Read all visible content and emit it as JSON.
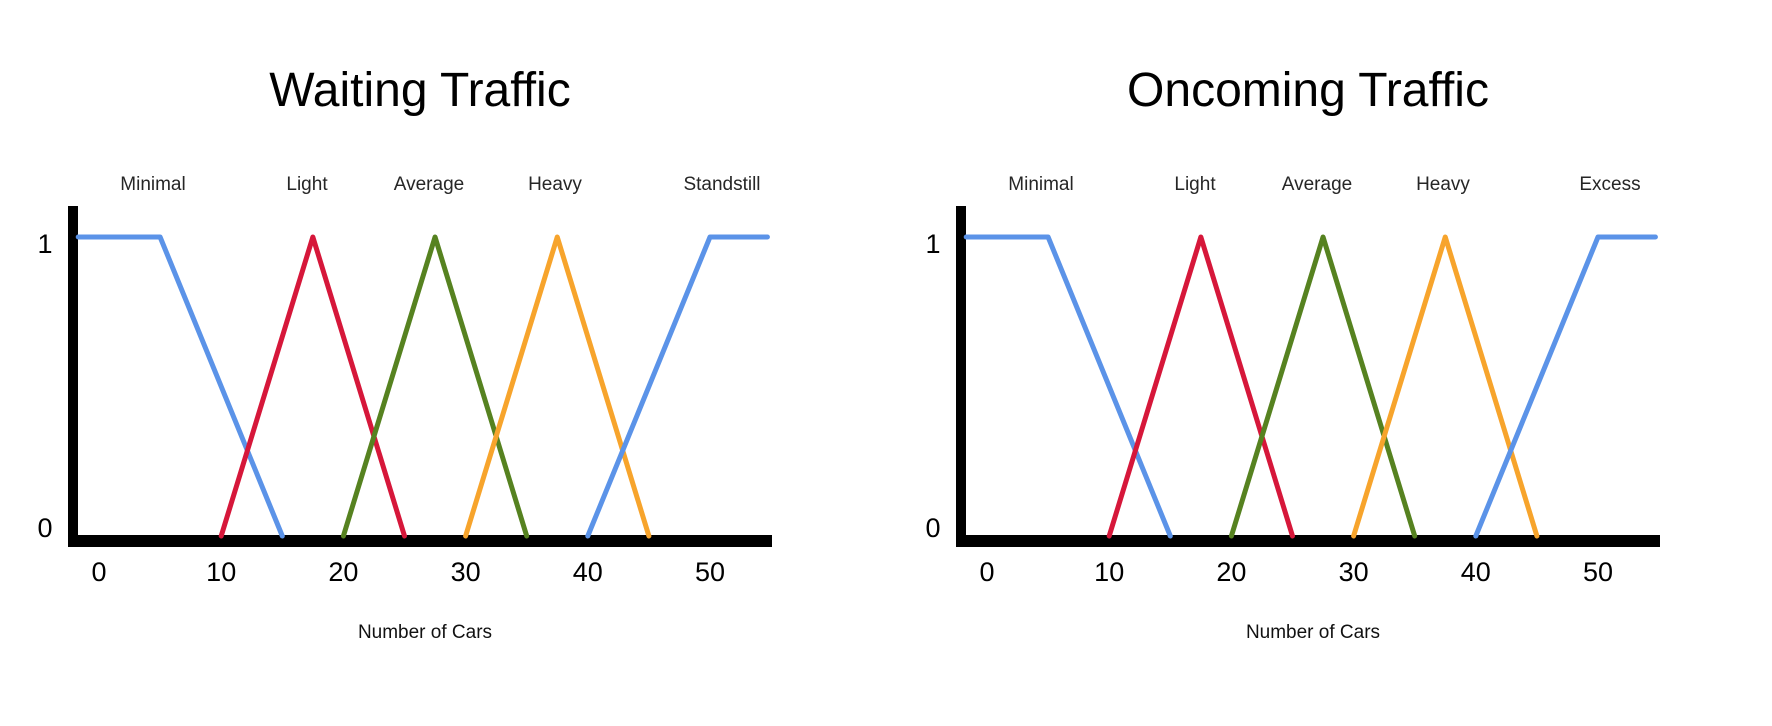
{
  "page": {
    "background": "#ffffff",
    "axis_color": "#000000"
  },
  "chart_data": [
    {
      "type": "line",
      "title": "Waiting Traffic",
      "xlabel": "Number of Cars",
      "ylabel": "",
      "xlim": [
        -2.5,
        55
      ],
      "ylim": [
        0,
        1
      ],
      "x_ticks": [
        0,
        10,
        20,
        30,
        40,
        50
      ],
      "y_ticks": [
        0,
        1
      ],
      "grid": false,
      "legend": "category-labels-above-plot",
      "series": [
        {
          "name": "Minimal",
          "color": "#5B93E8",
          "shape": "left-shoulder",
          "points": [
            [
              -1.7,
              1
            ],
            [
              5,
              1
            ],
            [
              15,
              0
            ]
          ]
        },
        {
          "name": "Light",
          "color": "#D6173A",
          "shape": "triangle",
          "points": [
            [
              10,
              0
            ],
            [
              17.5,
              1
            ],
            [
              25,
              0
            ]
          ]
        },
        {
          "name": "Average",
          "color": "#568220",
          "shape": "triangle",
          "points": [
            [
              20,
              0
            ],
            [
              27.5,
              1
            ],
            [
              35,
              0
            ]
          ]
        },
        {
          "name": "Heavy",
          "color": "#F7A42C",
          "shape": "triangle",
          "points": [
            [
              30,
              0
            ],
            [
              37.5,
              1
            ],
            [
              45,
              0
            ]
          ]
        },
        {
          "name": "Standstill",
          "color": "#5B93E8",
          "shape": "right-shoulder",
          "points": [
            [
              40,
              0
            ],
            [
              50,
              1
            ],
            [
              54.7,
              1
            ]
          ]
        }
      ]
    },
    {
      "type": "line",
      "title": "Oncoming Traffic",
      "xlabel": "Number of Cars",
      "ylabel": "",
      "xlim": [
        -2.5,
        55
      ],
      "ylim": [
        0,
        1
      ],
      "x_ticks": [
        0,
        10,
        20,
        30,
        40,
        50
      ],
      "y_ticks": [
        0,
        1
      ],
      "grid": false,
      "legend": "category-labels-above-plot",
      "series": [
        {
          "name": "Minimal",
          "color": "#5B93E8",
          "shape": "left-shoulder",
          "points": [
            [
              -1.7,
              1
            ],
            [
              5,
              1
            ],
            [
              15,
              0
            ]
          ]
        },
        {
          "name": "Light",
          "color": "#D6173A",
          "shape": "triangle",
          "points": [
            [
              10,
              0
            ],
            [
              17.5,
              1
            ],
            [
              25,
              0
            ]
          ]
        },
        {
          "name": "Average",
          "color": "#568220",
          "shape": "triangle",
          "points": [
            [
              20,
              0
            ],
            [
              27.5,
              1
            ],
            [
              35,
              0
            ]
          ]
        },
        {
          "name": "Heavy",
          "color": "#F7A42C",
          "shape": "triangle",
          "points": [
            [
              30,
              0
            ],
            [
              37.5,
              1
            ],
            [
              45,
              0
            ]
          ]
        },
        {
          "name": "Excess",
          "color": "#5B93E8",
          "shape": "right-shoulder",
          "points": [
            [
              40,
              0
            ],
            [
              50,
              1
            ],
            [
              54.7,
              1
            ]
          ]
        }
      ]
    }
  ]
}
